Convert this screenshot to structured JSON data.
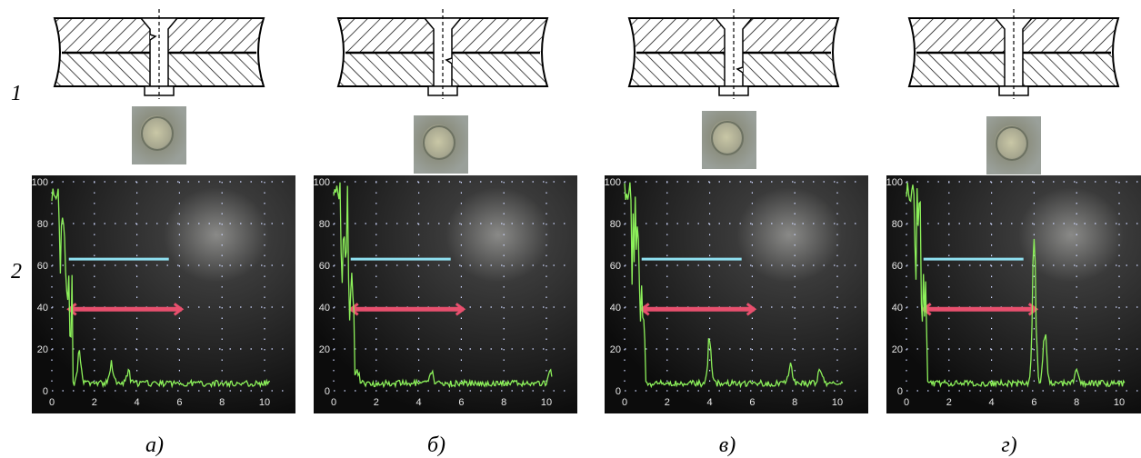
{
  "row_labels": [
    "1",
    "2"
  ],
  "panels": [
    {
      "label": "а)"
    },
    {
      "label": "б)"
    },
    {
      "label": "в)"
    },
    {
      "label": "г)"
    }
  ],
  "screen": {
    "xticks": [
      0,
      2,
      4,
      6,
      8,
      10
    ],
    "yticks": [
      0,
      20,
      40,
      60,
      80,
      100
    ]
  }
}
